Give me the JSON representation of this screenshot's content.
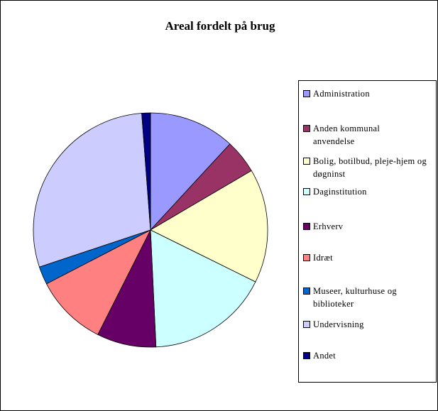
{
  "chart_data": {
    "type": "pie",
    "title": "Areal fordelt på brug",
    "categories": [
      "Administration",
      "Anden kommunal anvendelse",
      "Bolig, botilbud, pleje-hjem og døgninst",
      "Daginstitution",
      "Erhverv",
      "Idræt",
      "Museer, kulturhuse og biblioteker",
      "Undervisning",
      "Andet"
    ],
    "values": [
      11.9,
      4.7,
      15.8,
      17,
      8.2,
      10,
      2.5,
      29,
      1.2
    ],
    "colors": [
      "#9999ff",
      "#993366",
      "#ffffcc",
      "#ccffff",
      "#660066",
      "#ff8080",
      "#0066cc",
      "#ccccff",
      "#000080"
    ],
    "legend": "right"
  }
}
